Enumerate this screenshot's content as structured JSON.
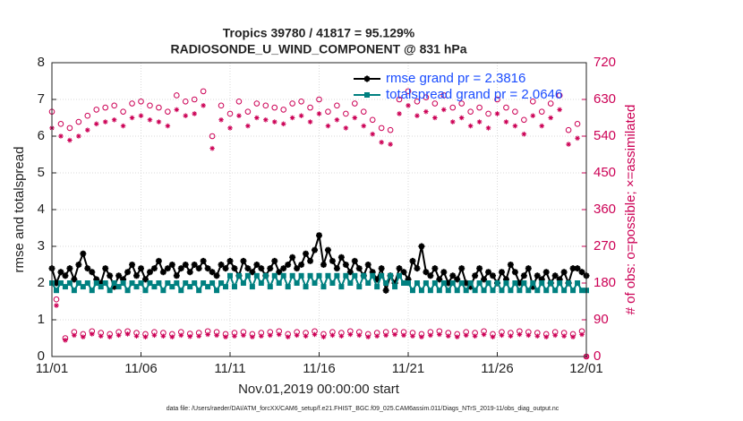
{
  "chart_data": {
    "type": "line",
    "title": "Tropics 39780 / 41817 = 95.129%",
    "subtitle": "RADIOSONDE_U_WIND_COMPONENT @ 831 hPa",
    "xlabel": "Nov.01,2019 00:00:00 start",
    "ylabel": "rmse and totalspread",
    "y2label": "# of obs: o=possible; ×=assimilated",
    "footnote": "data file: /Users/raeder/DAI/ATM_forcXX/CAM6_setup/f.e21.FHIST_BGC.f09_025.CAM6assim.011/Diags_NTrS_2019-11/obs_diag_output.nc",
    "grid": true,
    "legend": "upper right",
    "xlim": [
      0,
      30
    ],
    "xticks": [
      {
        "value": 0,
        "label": "11/01"
      },
      {
        "value": 5,
        "label": "11/06"
      },
      {
        "value": 10,
        "label": "11/11"
      },
      {
        "value": 15,
        "label": "11/16"
      },
      {
        "value": 20,
        "label": "11/21"
      },
      {
        "value": 25,
        "label": "11/26"
      },
      {
        "value": 30,
        "label": "12/01"
      }
    ],
    "ylim": [
      0,
      8
    ],
    "yticks": [
      0,
      1,
      2,
      3,
      4,
      5,
      6,
      7,
      8
    ],
    "y2lim": [
      0,
      720
    ],
    "y2ticks": [
      0,
      90,
      180,
      270,
      360,
      450,
      540,
      630,
      720
    ],
    "x": [
      0,
      0.25,
      0.5,
      0.75,
      1,
      1.25,
      1.5,
      1.75,
      2,
      2.25,
      2.5,
      2.75,
      3,
      3.25,
      3.5,
      3.75,
      4,
      4.25,
      4.5,
      4.75,
      5,
      5.25,
      5.5,
      5.75,
      6,
      6.25,
      6.5,
      6.75,
      7,
      7.25,
      7.5,
      7.75,
      8,
      8.25,
      8.5,
      8.75,
      9,
      9.25,
      9.5,
      9.75,
      10,
      10.25,
      10.5,
      10.75,
      11,
      11.25,
      11.5,
      11.75,
      12,
      12.25,
      12.5,
      12.75,
      13,
      13.25,
      13.5,
      13.75,
      14,
      14.25,
      14.5,
      14.75,
      15,
      15.25,
      15.5,
      15.75,
      16,
      16.25,
      16.5,
      16.75,
      17,
      17.25,
      17.5,
      17.75,
      18,
      18.25,
      18.5,
      18.75,
      19,
      19.25,
      19.5,
      19.75,
      20,
      20.25,
      20.5,
      20.75,
      21,
      21.25,
      21.5,
      21.75,
      22,
      22.25,
      22.5,
      22.75,
      23,
      23.25,
      23.5,
      23.75,
      24,
      24.25,
      24.5,
      24.75,
      25,
      25.25,
      25.5,
      25.75,
      26,
      26.25,
      26.5,
      26.75,
      27,
      27.25,
      27.5,
      27.75,
      28,
      28.25,
      28.5,
      28.75,
      29,
      29.25,
      29.5,
      29.75,
      30
    ],
    "series": [
      {
        "name": "rmse grand pr = 2.3816",
        "color": "#000000",
        "marker": "star",
        "line": true,
        "values": [
          2.4,
          2.0,
          2.3,
          2.2,
          2.4,
          2.1,
          2.5,
          2.8,
          2.4,
          2.3,
          2.1,
          2.0,
          2.4,
          2.2,
          1.9,
          2.2,
          2.1,
          2.3,
          2.5,
          2.2,
          2.4,
          2.1,
          2.3,
          2.4,
          2.6,
          2.3,
          2.4,
          2.5,
          2.2,
          2.4,
          2.5,
          2.3,
          2.5,
          2.4,
          2.6,
          2.4,
          2.3,
          2.2,
          2.5,
          2.4,
          2.6,
          2.4,
          2.2,
          2.6,
          2.4,
          2.3,
          2.5,
          2.4,
          2.2,
          2.4,
          2.6,
          2.3,
          2.4,
          2.5,
          2.7,
          2.4,
          2.5,
          2.8,
          2.6,
          2.9,
          3.3,
          2.5,
          2.9,
          2.6,
          2.4,
          2.7,
          2.5,
          2.3,
          2.6,
          2.4,
          2.2,
          2.5,
          2.3,
          2.1,
          2.4,
          1.8,
          2.2,
          2.0,
          2.4,
          2.3,
          2.1,
          2.6,
          2.4,
          3.0,
          2.3,
          2.2,
          2.4,
          2.1,
          2.3,
          2.0,
          2.2,
          2.1,
          2.4,
          2.0,
          1.9,
          2.2,
          2.4,
          2.1,
          2.3,
          2.2,
          2.0,
          2.3,
          2.1,
          2.5,
          2.3,
          2.0,
          2.2,
          2.4,
          1.9,
          2.2,
          2.1,
          2.3,
          2.0,
          2.2,
          2.1,
          2.3,
          2.0,
          2.4,
          2.4,
          2.3,
          2.2
        ]
      },
      {
        "name": "totalspread grand pr = 2.0646",
        "color": "#008080",
        "marker": "square",
        "line": true,
        "values": [
          2.0,
          1.8,
          2.0,
          1.9,
          2.0,
          1.8,
          2.0,
          1.9,
          2.0,
          1.8,
          2.0,
          1.9,
          2.0,
          1.8,
          2.0,
          1.9,
          2.0,
          1.8,
          2.0,
          1.9,
          2.0,
          1.8,
          2.0,
          1.9,
          2.0,
          1.8,
          2.0,
          1.9,
          2.0,
          1.8,
          2.0,
          1.9,
          2.0,
          1.8,
          2.0,
          1.9,
          2.0,
          1.8,
          2.0,
          1.9,
          2.2,
          1.9,
          2.2,
          2.0,
          2.2,
          1.9,
          2.2,
          2.0,
          2.2,
          1.9,
          2.2,
          2.0,
          2.2,
          1.9,
          2.2,
          2.0,
          2.2,
          1.9,
          2.2,
          2.0,
          2.2,
          1.9,
          2.2,
          2.0,
          2.2,
          1.9,
          2.2,
          2.0,
          2.2,
          1.9,
          2.2,
          2.0,
          2.2,
          1.9,
          2.2,
          2.0,
          2.2,
          1.9,
          2.2,
          2.0,
          2.0,
          1.8,
          2.0,
          1.8,
          2.0,
          1.8,
          2.0,
          1.8,
          2.0,
          1.8,
          2.0,
          1.8,
          2.0,
          1.8,
          2.0,
          1.8,
          2.0,
          1.8,
          2.0,
          1.8,
          2.0,
          1.8,
          2.0,
          1.8,
          2.0,
          1.8,
          2.0,
          1.8,
          2.0,
          1.8,
          2.0,
          1.8,
          2.0,
          1.8,
          2.0,
          1.8,
          2.0,
          1.8,
          2.0,
          1.8,
          1.8
        ]
      },
      {
        "color": "#cc0055",
        "marker": "circle",
        "line": false,
        "axis": "y2",
        "values": [
          600,
          140,
          570,
          45,
          560,
          60,
          575,
          55,
          590,
          62,
          605,
          58,
          610,
          55,
          615,
          60,
          600,
          62,
          620,
          58,
          625,
          55,
          615,
          60,
          610,
          58,
          600,
          55,
          640,
          60,
          625,
          56,
          630,
          58,
          650,
          62,
          540,
          60,
          615,
          55,
          595,
          58,
          625,
          60,
          600,
          55,
          620,
          58,
          615,
          60,
          610,
          62,
          605,
          55,
          620,
          60,
          625,
          58,
          610,
          62,
          630,
          55,
          600,
          60,
          615,
          58,
          595,
          62,
          620,
          60,
          600,
          55,
          580,
          58,
          560,
          60,
          555,
          62,
          630,
          60,
          650,
          58,
          625,
          55,
          635,
          60,
          620,
          62,
          640,
          58,
          610,
          55,
          620,
          60,
          600,
          58,
          610,
          62,
          595,
          55,
          630,
          60,
          610,
          58,
          600,
          62,
          580,
          60,
          625,
          58,
          600,
          55,
          620,
          60,
          640,
          58,
          555,
          55,
          570,
          62,
          0
        ]
      },
      {
        "color": "#cc0055",
        "marker": "asterisk",
        "line": false,
        "axis": "y2",
        "values": [
          560,
          125,
          540,
          40,
          530,
          52,
          540,
          48,
          555,
          55,
          570,
          50,
          575,
          48,
          580,
          52,
          565,
          55,
          585,
          50,
          590,
          48,
          580,
          52,
          575,
          50,
          565,
          48,
          605,
          52,
          590,
          49,
          595,
          50,
          615,
          54,
          510,
          52,
          580,
          48,
          560,
          50,
          590,
          52,
          565,
          48,
          585,
          50,
          580,
          52,
          575,
          54,
          570,
          48,
          585,
          52,
          590,
          50,
          575,
          54,
          595,
          48,
          565,
          52,
          580,
          50,
          560,
          54,
          585,
          52,
          565,
          48,
          545,
          50,
          525,
          52,
          520,
          54,
          595,
          52,
          615,
          50,
          590,
          48,
          600,
          52,
          585,
          54,
          605,
          50,
          575,
          48,
          585,
          52,
          565,
          50,
          575,
          54,
          560,
          48,
          595,
          52,
          575,
          50,
          565,
          54,
          545,
          52,
          590,
          50,
          565,
          48,
          585,
          52,
          605,
          50,
          520,
          48,
          535,
          54,
          0
        ]
      }
    ]
  }
}
